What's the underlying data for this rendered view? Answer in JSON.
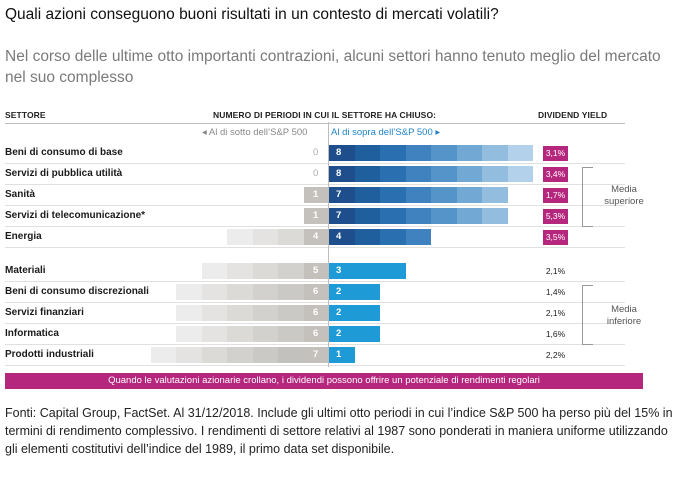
{
  "title": "Quali azioni conseguono buoni risultati in un contesto di mercati volatili?",
  "subtitle": "Nel corso delle ultime otto importanti contrazioni, alcuni settori hanno tenuto meglio del mercato nel suo complesso",
  "headers": {
    "sector": "SETTORE",
    "periods": "NUMERO DI PERIODI IN CUI IL SETTORE HA CHIUSO:",
    "below": "◂ Al di sotto dell’S&P 500",
    "above": "Al di sopra dell’S&P 500 ▸",
    "dividend": "DIVIDEND YIELD"
  },
  "groups": {
    "upper": "Media superiore",
    "lower": "Media inferiore"
  },
  "colors": {
    "magenta": "#b5267d",
    "dark_blue": "#1f4e8c",
    "light_blue": "#1e9bd7",
    "gray": "#c8c8c8"
  },
  "chart_data": {
    "type": "bar",
    "categories": [
      "Beni di consumo di base",
      "Servizi di pubblica utilità",
      "Sanità",
      "Servizi di telecomunicazione*",
      "Energia",
      "Materiali",
      "Beni di consumo discrezionali",
      "Servizi finanziari",
      "Informatica",
      "Prodotti industriali"
    ],
    "series": [
      {
        "name": "Al di sotto dell’S&P 500",
        "values": [
          0,
          0,
          1,
          1,
          4,
          5,
          6,
          6,
          6,
          7
        ]
      },
      {
        "name": "Al di sopra dell’S&P 500",
        "values": [
          8,
          8,
          7,
          7,
          4,
          3,
          2,
          2,
          2,
          1
        ]
      }
    ],
    "dividend_yield": [
      "3,1%",
      "3,4%",
      "1,7%",
      "5,3%",
      "3,5%",
      "2,1%",
      "1,4%",
      "2,1%",
      "1,6%",
      "2,2%"
    ],
    "group": [
      "upper",
      "upper",
      "upper",
      "upper",
      "upper",
      "lower",
      "lower",
      "lower",
      "lower",
      "lower"
    ],
    "xlim": [
      -8,
      8
    ]
  },
  "banner": "Quando le valutazioni azionarie crollano, i dividendi possono offrire un potenziale di rendimenti regolari",
  "footnote": "Fonti: Capital Group, FactSet. Al 31/12/2018. Include gli ultimi otto periodi in cui l’indice S&P 500 ha perso più del 15% in termini di rendimento complessivo. I rendimenti di settore relativi al 1987 sono ponderati in maniera uniforme utilizzando gli elementi costitutivi dell’indice del 1989, il primo data set disponibile."
}
